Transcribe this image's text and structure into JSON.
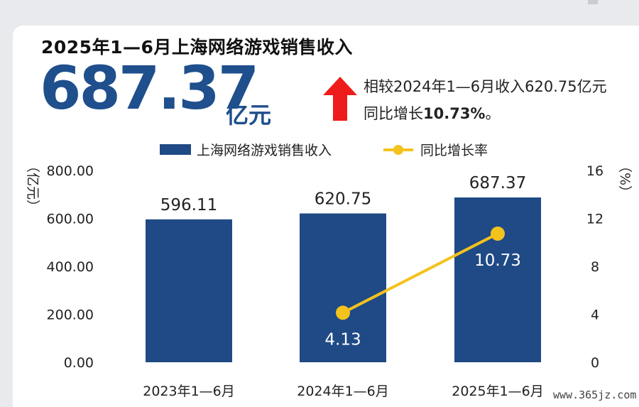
{
  "title": "2025年1—6月上海网络游戏销售收入",
  "headline": {
    "value": "687.37",
    "unit": "亿元"
  },
  "comparison": {
    "line1": "相较2024年1—6月收入620.75亿元",
    "line2_prefix": "同比增长",
    "line2_value": "10.73%",
    "line2_suffix": "。"
  },
  "watermark": "www.365jz.com",
  "colors": {
    "bar": "#1f4a85",
    "line": "#f4c21d",
    "headline": "#1f4f8c",
    "arrow": "#ef1c1c"
  },
  "chart_data": {
    "type": "bar",
    "categories": [
      "2023年1—6月",
      "2024年1—6月",
      "2025年1—6月"
    ],
    "series": [
      {
        "name": "上海网络游戏销售收入",
        "type": "bar",
        "axis": "left",
        "values": [
          596.11,
          620.75,
          687.37
        ],
        "labels": [
          "596.11",
          "620.75",
          "687.37"
        ]
      },
      {
        "name": "同比增长率",
        "type": "line",
        "axis": "right",
        "values": [
          null,
          4.13,
          10.73
        ],
        "labels": [
          "",
          "4.13",
          "10.73"
        ]
      }
    ],
    "y_left": {
      "label": "（亿元）",
      "ylim": [
        0,
        800
      ],
      "ticks": [
        "0.00",
        "200.00",
        "400.00",
        "600.00",
        "800.00"
      ]
    },
    "y_right": {
      "label": "（%）",
      "ylim": [
        0,
        16
      ],
      "ticks": [
        "0",
        "4",
        "8",
        "12",
        "16"
      ]
    },
    "legend": "top-center",
    "grid": false
  }
}
